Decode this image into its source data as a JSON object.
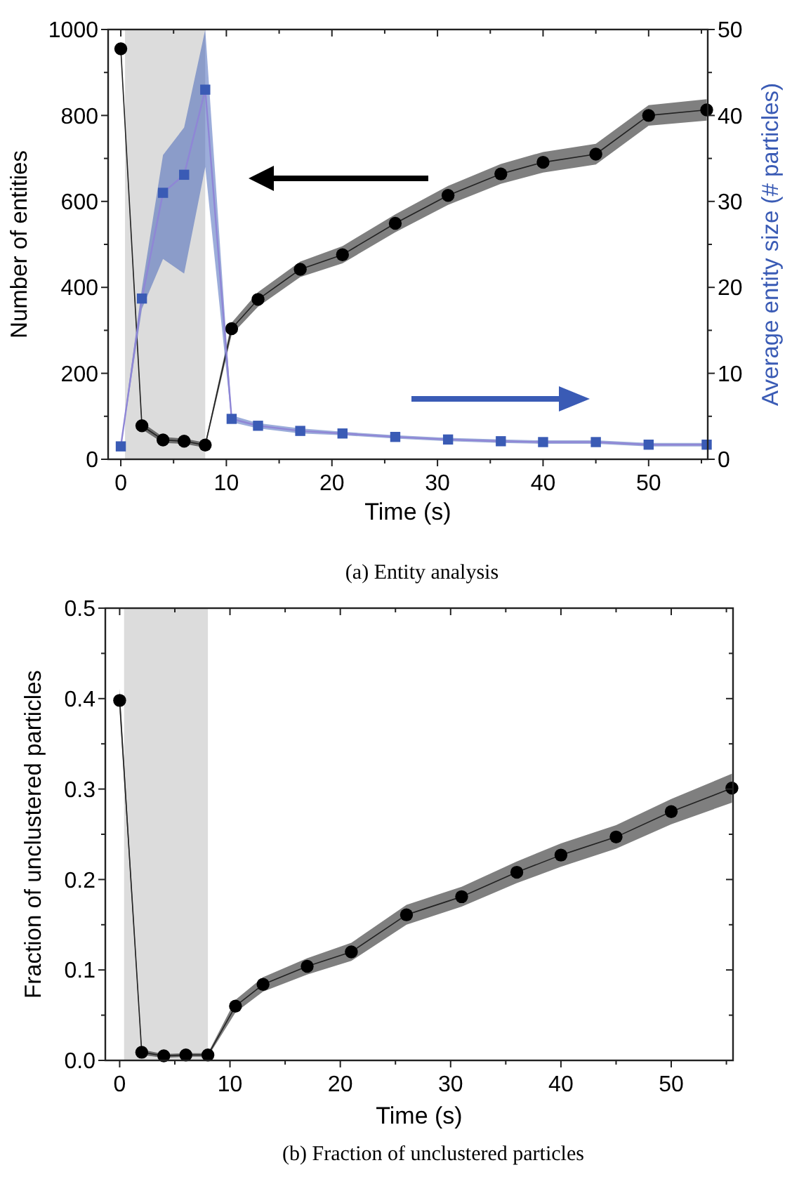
{
  "chart_data": [
    {
      "type": "line",
      "xlabel": "Time (s)",
      "ylabel": "Number of entities",
      "y2label": "Average entity size (# particles)",
      "x": [
        0,
        2,
        4,
        6,
        8,
        10.5,
        13,
        17,
        21,
        26,
        31,
        36,
        40,
        45,
        50,
        55.5
      ],
      "xlim": [
        -1.2,
        55.6
      ],
      "xticks": [
        0,
        {
          "value": 5,
          "label": null
        },
        10,
        {
          "value": 15,
          "label": null
        },
        20,
        {
          "value": 25,
          "label": null
        },
        30,
        {
          "value": 35,
          "label": null
        },
        40,
        {
          "value": 45,
          "label": null
        },
        50,
        {
          "value": 55,
          "label": null
        }
      ],
      "ylim": [
        0,
        1000
      ],
      "yticks": [
        0,
        {
          "value": 100,
          "label": null
        },
        200,
        {
          "value": 300,
          "label": null
        },
        400,
        {
          "value": 500,
          "label": null
        },
        600,
        {
          "value": 700,
          "label": null
        },
        800,
        {
          "value": 900,
          "label": null
        },
        1000
      ],
      "y2lim": [
        0,
        50
      ],
      "y2ticks": [
        0,
        {
          "value": 5,
          "label": null
        },
        10,
        {
          "value": 15,
          "label": null
        },
        20,
        {
          "value": 25,
          "label": null
        },
        30,
        {
          "value": 35,
          "label": null
        },
        40,
        {
          "value": 45,
          "label": null
        },
        50
      ],
      "series": [
        {
          "color": "#000000",
          "marker": "circle",
          "values": [
            955,
            78,
            45,
            42,
            33,
            304,
            372,
            442,
            476,
            549,
            614,
            664,
            691,
            710,
            800,
            813
          ],
          "lower": [
            950,
            70,
            38,
            36,
            27,
            290,
            355,
            424,
            456,
            528,
            592,
            641,
            667,
            686,
            776,
            788
          ],
          "upper": [
            960,
            86,
            52,
            48,
            39,
            318,
            389,
            460,
            496,
            570,
            636,
            687,
            715,
            734,
            824,
            838
          ]
        },
        {
          "color": "#3a5bb5",
          "marker": "square",
          "axis": "y2",
          "values": [
            1.5,
            18.7,
            31,
            33.1,
            43,
            4.7,
            3.9,
            3.3,
            3.0,
            2.6,
            2.3,
            2.1,
            2.0,
            2.0,
            1.7,
            1.7
          ],
          "lower": [
            1.3,
            17.5,
            23.3,
            21.6,
            34,
            4.3,
            3.6,
            3.0,
            2.8,
            2.4,
            2.1,
            1.9,
            1.8,
            1.8,
            1.5,
            1.5
          ],
          "upper": [
            1.7,
            19.9,
            35.4,
            38.6,
            50,
            5.1,
            4.2,
            3.6,
            3.2,
            2.8,
            2.5,
            2.3,
            2.2,
            2.2,
            1.9,
            1.9
          ]
        }
      ],
      "bands": [
        {
          "axis": "x",
          "from": 0.4,
          "to": 8,
          "color": "#dcdcdc"
        }
      ],
      "annotations": [
        "(a)  Entity analysis"
      ]
    },
    {
      "type": "line",
      "xlabel": "Time (s)",
      "ylabel": "Fraction of unclustered particles",
      "x": [
        0,
        2,
        4,
        6,
        8,
        10.5,
        13,
        17,
        21,
        26,
        31,
        36,
        40,
        45,
        50,
        55.5
      ],
      "xlim": [
        -1.3,
        55.6
      ],
      "xticks": [
        0,
        {
          "value": 5,
          "label": null
        },
        10,
        {
          "value": 15,
          "label": null
        },
        20,
        {
          "value": 25,
          "label": null
        },
        30,
        {
          "value": 35,
          "label": null
        },
        40,
        {
          "value": 45,
          "label": null
        },
        50,
        {
          "value": 55,
          "label": null
        }
      ],
      "ylim": [
        0,
        0.5
      ],
      "yticks": [
        {
          "value": 0,
          "label": "0.0"
        },
        {
          "value": 0.05,
          "label": null
        },
        0.1,
        {
          "value": 0.15,
          "label": null
        },
        0.2,
        {
          "value": 0.25,
          "label": null
        },
        0.3,
        {
          "value": 0.35,
          "label": null
        },
        0.4,
        {
          "value": 0.45,
          "label": null
        },
        0.5
      ],
      "series": [
        {
          "color": "#000000",
          "marker": "circle",
          "values": [
            0.398,
            0.009,
            0.005,
            0.006,
            0.006,
            0.06,
            0.084,
            0.104,
            0.12,
            0.161,
            0.181,
            0.208,
            0.227,
            0.247,
            0.275,
            0.301
          ],
          "lower": [
            0.385,
            0.006,
            0.003,
            0.004,
            0.004,
            0.053,
            0.076,
            0.095,
            0.11,
            0.15,
            0.17,
            0.196,
            0.214,
            0.234,
            0.261,
            0.285
          ],
          "upper": [
            0.411,
            0.012,
            0.007,
            0.008,
            0.008,
            0.067,
            0.092,
            0.113,
            0.13,
            0.172,
            0.192,
            0.22,
            0.24,
            0.26,
            0.289,
            0.317
          ]
        }
      ],
      "bands": [
        {
          "axis": "x",
          "from": 0.4,
          "to": 8,
          "color": "#dcdcdc"
        }
      ],
      "annotations": [
        "(b)  Fraction of unclustered particles"
      ]
    }
  ]
}
